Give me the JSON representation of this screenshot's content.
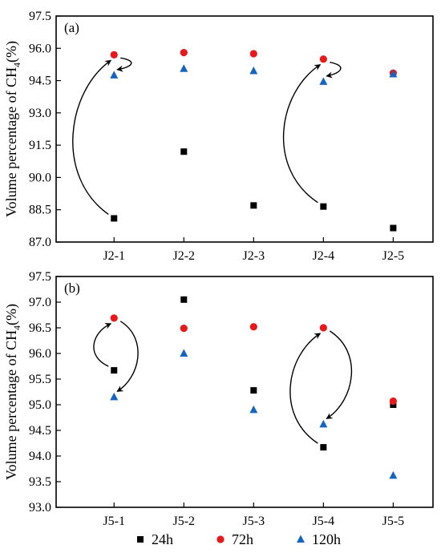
{
  "colors": {
    "s24": "#000000",
    "s72": "#e8191b",
    "s120": "#1565c0",
    "axis": "#000000"
  },
  "legend": [
    {
      "key": "s24",
      "label": "24h",
      "marker": "square"
    },
    {
      "key": "s72",
      "label": "72h",
      "marker": "circle"
    },
    {
      "key": "s120",
      "label": "120h",
      "marker": "triangle"
    }
  ],
  "chart_data": [
    {
      "type": "scatter",
      "panel": "(a)",
      "ylabel_main": "Volume percentage of CH",
      "ylabel_sub": "4",
      "ylabel_tail": "(%)",
      "xlabel": "",
      "categories": [
        "J2-1",
        "J2-2",
        "J2-3",
        "J2-4",
        "J2-5"
      ],
      "ylim": [
        87.0,
        97.5
      ],
      "yticks": [
        "87.0",
        "88.5",
        "90.0",
        "91.5",
        "93.0",
        "94.5",
        "96.0",
        "97.5"
      ],
      "series": [
        {
          "name": "24h",
          "key": "s24",
          "values": [
            88.1,
            91.2,
            88.7,
            88.65,
            87.65
          ]
        },
        {
          "name": "72h",
          "key": "s72",
          "values": [
            95.7,
            95.8,
            95.75,
            95.5,
            94.85
          ]
        },
        {
          "name": "120h",
          "key": "s120",
          "values": [
            94.75,
            95.05,
            94.95,
            94.45,
            94.8
          ]
        }
      ],
      "arrows": [
        {
          "from": [
            "J2-1",
            88.1
          ],
          "to": [
            "J2-1",
            95.7
          ],
          "side": "left"
        },
        {
          "from": [
            "J2-1",
            95.7
          ],
          "to": [
            "J2-1",
            94.75
          ],
          "side": "right"
        },
        {
          "from": [
            "J2-4",
            88.65
          ],
          "to": [
            "J2-4",
            95.5
          ],
          "side": "left"
        },
        {
          "from": [
            "J2-4",
            95.5
          ],
          "to": [
            "J2-4",
            94.45
          ],
          "side": "right"
        }
      ]
    },
    {
      "type": "scatter",
      "panel": "(b)",
      "ylabel_main": "Volume percentage of CH",
      "ylabel_sub": "4",
      "ylabel_tail": "(%)",
      "xlabel": "",
      "categories": [
        "J5-1",
        "J5-2",
        "J5-3",
        "J5-4",
        "J5-5"
      ],
      "ylim": [
        93.0,
        97.5
      ],
      "yticks": [
        "93.0",
        "93.5",
        "94.0",
        "94.5",
        "95.0",
        "95.5",
        "96.0",
        "96.5",
        "97.0",
        "97.5"
      ],
      "series": [
        {
          "name": "24h",
          "key": "s24",
          "values": [
            95.67,
            97.05,
            95.28,
            94.17,
            95.0
          ]
        },
        {
          "name": "72h",
          "key": "s72",
          "values": [
            96.69,
            96.49,
            96.52,
            96.5,
            95.07
          ]
        },
        {
          "name": "120h",
          "key": "s120",
          "values": [
            95.15,
            96.0,
            94.9,
            94.62,
            93.62
          ]
        }
      ],
      "arrows": [
        {
          "from": [
            "J5-1",
            95.67
          ],
          "to": [
            "J5-1",
            96.69
          ],
          "side": "left"
        },
        {
          "from": [
            "J5-1",
            96.69
          ],
          "to": [
            "J5-1",
            95.15
          ],
          "side": "right"
        },
        {
          "from": [
            "J5-4",
            94.17
          ],
          "to": [
            "J5-4",
            96.5
          ],
          "side": "left"
        },
        {
          "from": [
            "J5-4",
            96.5
          ],
          "to": [
            "J5-4",
            94.62
          ],
          "side": "right"
        }
      ]
    }
  ]
}
